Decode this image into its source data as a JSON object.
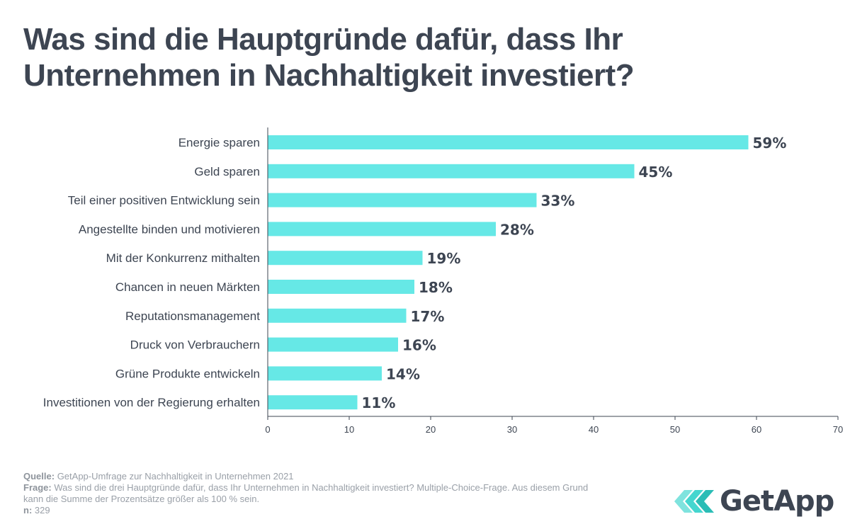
{
  "title_line1": "Was sind die Hauptgründe dafür, dass Ihr",
  "title_line2": "Unternehmen in Nachhaltigkeit investiert?",
  "colors": {
    "bar": "#66e8e6",
    "text": "#3d4552",
    "axis": "#3d4552",
    "footer": "#9aa0a8",
    "logo_teal": "#45d6cf"
  },
  "chart_data": {
    "type": "bar",
    "orientation": "horizontal",
    "title": "Was sind die Hauptgründe dafür, dass Ihr Unternehmen in Nachhaltigkeit investiert?",
    "categories": [
      "Energie sparen",
      "Geld sparen",
      "Teil einer positiven Entwicklung sein",
      "Angestellte binden und motivieren",
      "Mit der Konkurrenz mithalten",
      "Chancen in neuen Märkten",
      "Reputationsmanagement",
      "Druck von Verbrauchern",
      "Grüne Produkte entwickeln",
      "Investitionen von der Regierung erhalten"
    ],
    "values": [
      59,
      45,
      33,
      28,
      19,
      18,
      17,
      16,
      14,
      11
    ],
    "value_labels": [
      "59%",
      "45%",
      "33%",
      "28%",
      "19%",
      "18%",
      "17%",
      "16%",
      "14%",
      "11%"
    ],
    "xlim": [
      0,
      70
    ],
    "xticks": [
      0,
      10,
      20,
      30,
      40,
      50,
      60,
      70
    ],
    "xlabel": "",
    "ylabel": "",
    "grid": false
  },
  "footer": {
    "source_label": "Quelle:",
    "source_text": " GetApp-Umfrage zur Nachhaltigkeit in Unternehmen 2021",
    "question_label": "Frage:",
    "question_text": " Was sind die drei Hauptgründe dafür, dass Ihr Unternehmen in Nachhaltigkeit investiert? Multiple-Choice-Frage. Aus diesem Grund kann die Summe der Prozentsätze größer als 100 % sein.",
    "n_label": "n:",
    "n_text": " 329"
  },
  "logo": {
    "text": "GetApp"
  }
}
